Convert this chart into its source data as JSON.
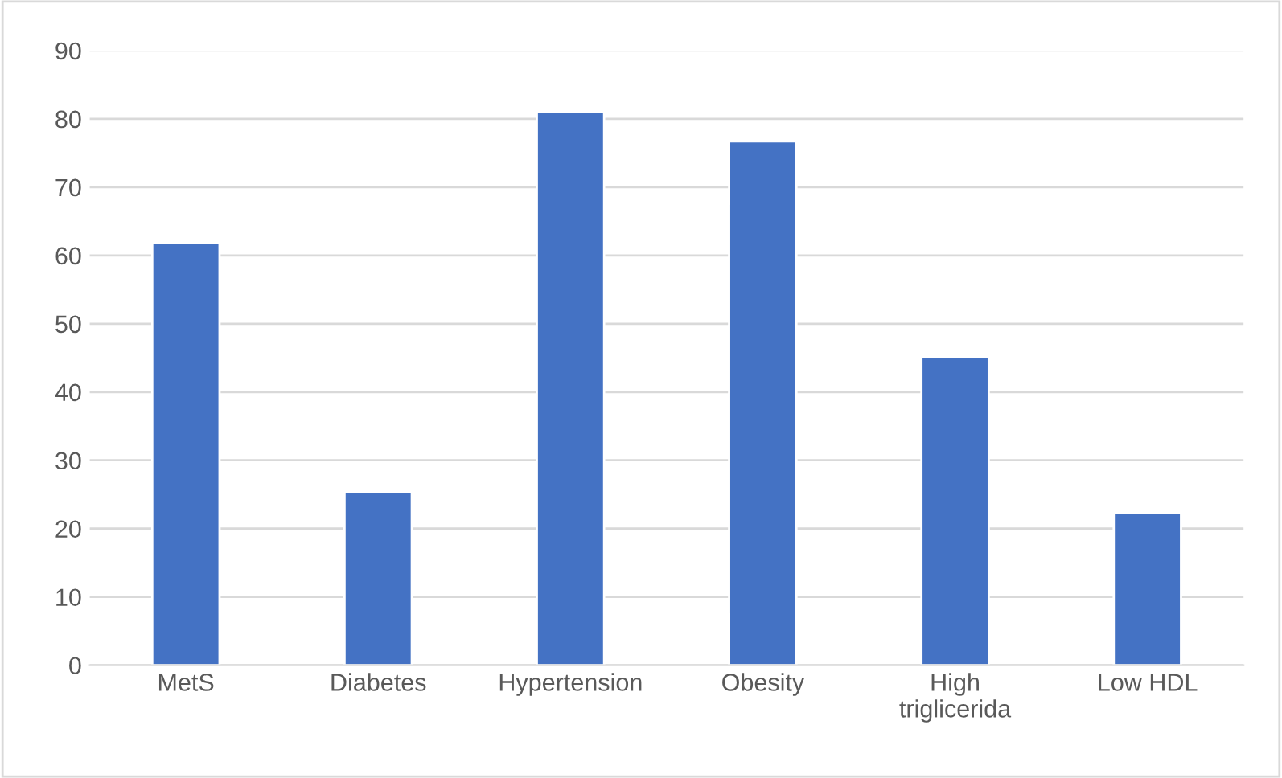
{
  "chart_data": {
    "type": "bar",
    "categories": [
      "MetS",
      "Diabetes",
      "Hypertension",
      "Obesity",
      "High\ntriglicerida",
      "Low HDL"
    ],
    "values": [
      61.8,
      25.3,
      81,
      76.7,
      45.2,
      22.3
    ],
    "color": "#4472c4",
    "ylim": [
      0,
      90
    ],
    "yticks": [
      0,
      10,
      20,
      30,
      40,
      50,
      60,
      70,
      80,
      90
    ],
    "grid": "y",
    "legend": false
  }
}
